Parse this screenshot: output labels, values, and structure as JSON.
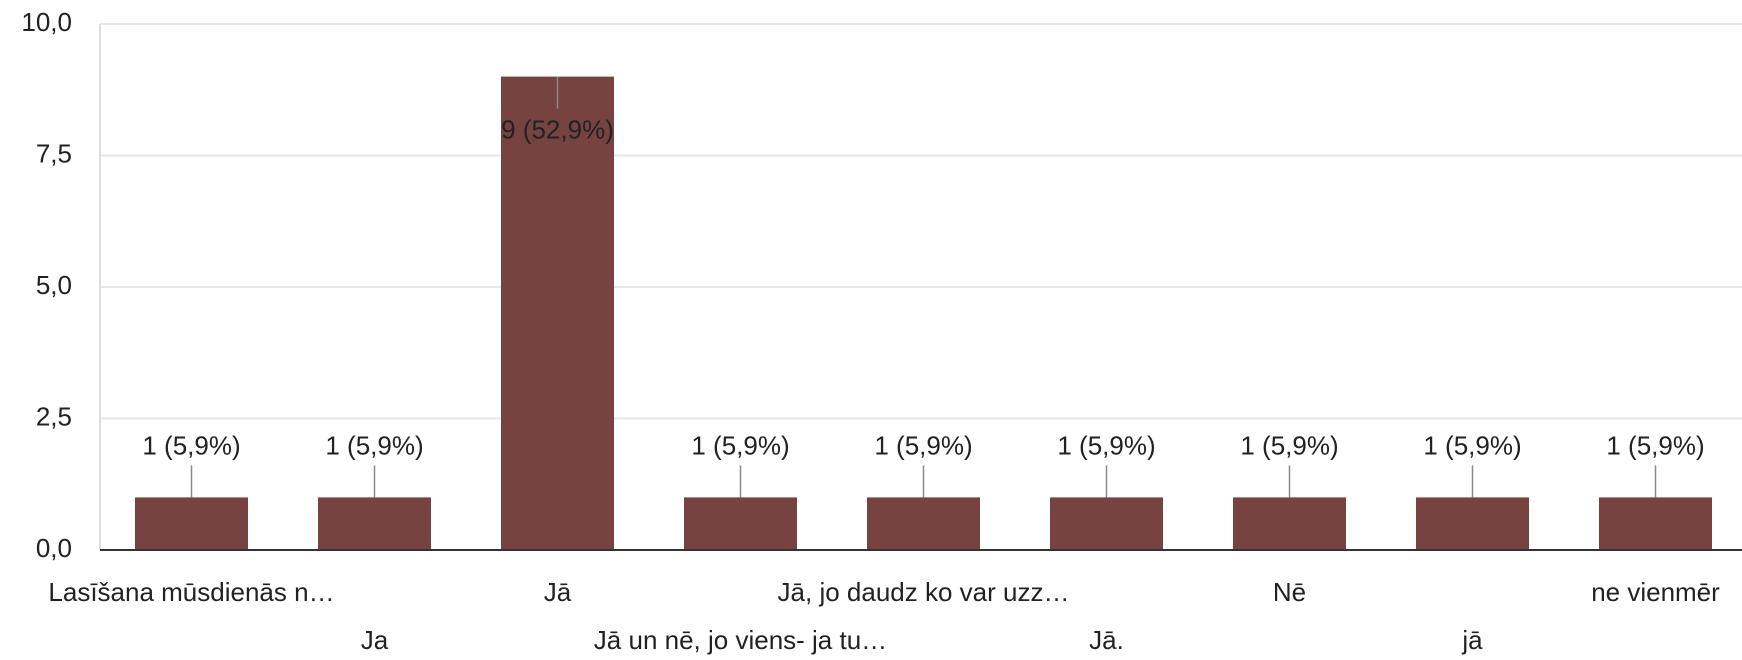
{
  "chart_data": {
    "type": "bar",
    "categories": [
      "Lasīšana mūsdienās n…",
      "Ja",
      "Jā",
      "Jā un nē, jo viens- ja tu…",
      "Jā, jo daudz ko var uzz…",
      "Jā.",
      "Nē",
      "jā",
      "ne vienmēr"
    ],
    "values": [
      1,
      1,
      9,
      1,
      1,
      1,
      1,
      1,
      1
    ],
    "value_labels": [
      "1 (5,9%)",
      "1 (5,9%)",
      "9 (52,9%)",
      "1 (5,9%)",
      "1 (5,9%)",
      "1 (5,9%)",
      "1 (5,9%)",
      "1 (5,9%)",
      "1 (5,9%)"
    ],
    "color": "#764341",
    "ylim": [
      0,
      10
    ],
    "yticks": [
      {
        "value": 0,
        "label": "0,0"
      },
      {
        "value": 2.5,
        "label": "2,5"
      },
      {
        "value": 5,
        "label": "5,0"
      },
      {
        "value": 7.5,
        "label": "7,5"
      },
      {
        "value": 10,
        "label": "10,0"
      }
    ],
    "grid": true
  }
}
